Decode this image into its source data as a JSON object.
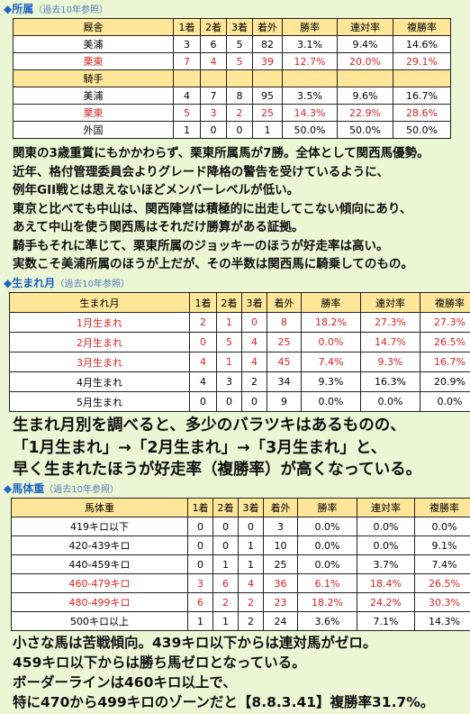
{
  "sections": [
    {
      "heading": "◆所属",
      "note": "（過去10年参照）",
      "table": {
        "groups": [
          {
            "header": [
              "厩舎",
              "1着",
              "2着",
              "3着",
              "着外",
              "勝率",
              "連対率",
              "複勝率"
            ],
            "rows": [
              {
                "cells": [
                  "美浦",
                  "3",
                  "6",
                  "5",
                  "82",
                  "3.1%",
                  "9.4%",
                  "14.6%"
                ],
                "highlight": false
              },
              {
                "cells": [
                  "栗東",
                  "7",
                  "4",
                  "5",
                  "39",
                  "12.7%",
                  "20.0%",
                  "29.1%"
                ],
                "highlight": true
              }
            ]
          },
          {
            "header": [
              "騎手"
            ],
            "rows": [
              {
                "cells": [
                  "美浦",
                  "4",
                  "7",
                  "8",
                  "95",
                  "3.5%",
                  "9.6%",
                  "16.7%"
                ],
                "highlight": false
              },
              {
                "cells": [
                  "栗東",
                  "5",
                  "3",
                  "2",
                  "25",
                  "14.3%",
                  "22.9%",
                  "28.6%"
                ],
                "highlight": true
              },
              {
                "cells": [
                  "外国",
                  "1",
                  "0",
                  "0",
                  "1",
                  "50.0%",
                  "50.0%",
                  "50.0%"
                ],
                "highlight": false
              }
            ]
          }
        ]
      },
      "text": [
        "関東の3歳重賞にもかかわらず、栗東所属馬が7勝。全体として関西馬優勢。",
        "近年、格付管理委員会よりグレード降格の警告を受けているように、",
        "例年GII戦とは思えないほどメンバーレベルが低い。",
        "東京と比べても中山は、関西陣営は積極的に出走してこない傾向にあり、",
        "あえて中山を使う関西馬はそれだけ勝算がある証拠。",
        "騎手もそれに準じて、栗東所属のジョッキーのほうが好走率は高い。",
        "実数こそ美浦所属のほうが上だが、その半数は関西馬に騎乗してのもの。"
      ]
    },
    {
      "heading": "◆生まれ月",
      "note": "（過去10年参照）",
      "table": {
        "groups": [
          {
            "header": [
              "生まれ月",
              "1着",
              "2着",
              "3着",
              "着外",
              "勝率",
              "連対率",
              "複勝率"
            ],
            "rows": [
              {
                "cells": [
                  "1月生まれ",
                  "2",
                  "1",
                  "0",
                  "8",
                  "18.2%",
                  "27.3%",
                  "27.3%"
                ],
                "highlight": true
              },
              {
                "cells": [
                  "2月生まれ",
                  "0",
                  "5",
                  "4",
                  "25",
                  "0.0%",
                  "14.7%",
                  "26.5%"
                ],
                "highlight": true
              },
              {
                "cells": [
                  "3月生まれ",
                  "4",
                  "1",
                  "4",
                  "45",
                  "7.4%",
                  "9.3%",
                  "16.7%"
                ],
                "highlight": true
              },
              {
                "cells": [
                  "4月生まれ",
                  "4",
                  "3",
                  "2",
                  "34",
                  "9.3%",
                  "16.3%",
                  "20.9%"
                ],
                "highlight": false
              },
              {
                "cells": [
                  "5月生まれ",
                  "0",
                  "0",
                  "0",
                  "9",
                  "0.0%",
                  "0.0%",
                  "0.0%"
                ],
                "highlight": false
              }
            ]
          }
        ]
      },
      "text": [
        "生まれ月別を調べると、多少のバラツキはあるものの、",
        "「1月生まれ」→「2月生まれ」→「3月生まれ」と、",
        "早く生まれたほうが好走率（複勝率）が高くなっている。"
      ]
    },
    {
      "heading": "◆馬体重",
      "note": "（過去10年参照）",
      "table": {
        "groups": [
          {
            "header": [
              "馬体重",
              "1着",
              "2着",
              "3着",
              "着外",
              "勝率",
              "連対率",
              "複勝率"
            ],
            "rows": [
              {
                "cells": [
                  "419キロ以下",
                  "0",
                  "0",
                  "0",
                  "3",
                  "0.0%",
                  "0.0%",
                  "0.0%"
                ],
                "highlight": false
              },
              {
                "cells": [
                  "420-439キロ",
                  "0",
                  "0",
                  "1",
                  "10",
                  "0.0%",
                  "0.0%",
                  "9.1%"
                ],
                "highlight": false
              },
              {
                "cells": [
                  "440-459キロ",
                  "0",
                  "1",
                  "1",
                  "25",
                  "0.0%",
                  "3.7%",
                  "7.4%"
                ],
                "highlight": false
              },
              {
                "cells": [
                  "460-479キロ",
                  "3",
                  "6",
                  "4",
                  "36",
                  "6.1%",
                  "18.4%",
                  "26.5%"
                ],
                "highlight": true
              },
              {
                "cells": [
                  "480-499キロ",
                  "6",
                  "2",
                  "2",
                  "23",
                  "18.2%",
                  "24.2%",
                  "30.3%"
                ],
                "highlight": true
              },
              {
                "cells": [
                  "500キロ以上",
                  "1",
                  "1",
                  "2",
                  "24",
                  "3.6%",
                  "7.1%",
                  "14.3%"
                ],
                "highlight": false
              }
            ]
          }
        ]
      },
      "text": [
        "小さな馬は苦戦傾向。439キロ以下からは連対馬がゼロ。",
        "459キロ以下からは勝ち馬ゼロとなっている。",
        "ボーダーラインは460キロ以上で、",
        "特に470から499キロのゾーンだと【8.8.3.41】複勝率31.7%。"
      ]
    }
  ]
}
